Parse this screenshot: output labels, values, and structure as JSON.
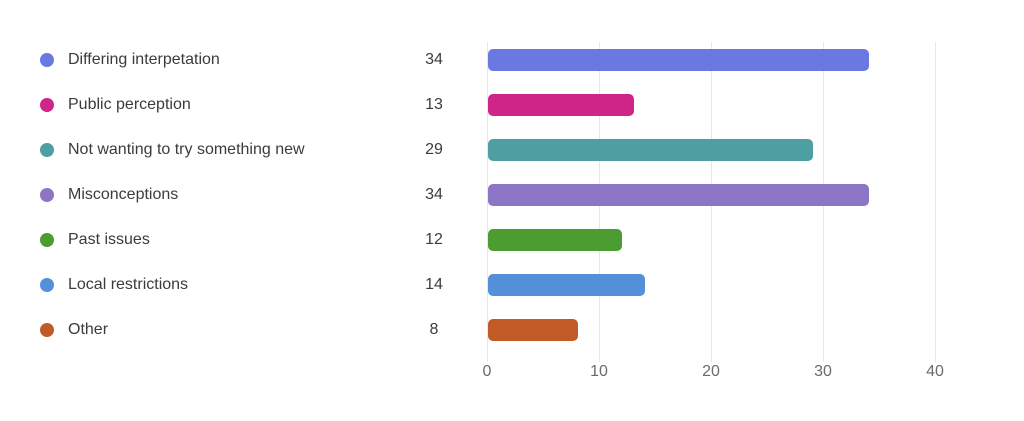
{
  "chart_data": {
    "type": "bar",
    "orientation": "horizontal",
    "title": "",
    "categories": [
      "Differing interpetation",
      "Public perception",
      "Not wanting to try something new",
      "Misconceptions",
      "Past issues",
      "Local restrictions",
      "Other"
    ],
    "values": [
      34,
      13,
      29,
      34,
      12,
      14,
      8
    ],
    "colors": [
      "#6A79E1",
      "#D02588",
      "#4E9FA1",
      "#8C75C4",
      "#4B9D31",
      "#5390D9",
      "#C05B27"
    ],
    "count_labels": [
      "34",
      "13",
      "29",
      "34",
      "12",
      "14",
      "8"
    ],
    "x_ticks": [
      0,
      10,
      20,
      30,
      40
    ],
    "x_tick_labels": [
      "0",
      "10",
      "20",
      "30",
      "40"
    ],
    "xlim": [
      0,
      45
    ],
    "grid": "vertical-gridlines-only",
    "legend_position": "left",
    "background_color": "#ffffff",
    "gridline_color": "#e7e7e7",
    "label_color": "#3b3b3b",
    "tick_label_color": "#6a6a6a"
  }
}
